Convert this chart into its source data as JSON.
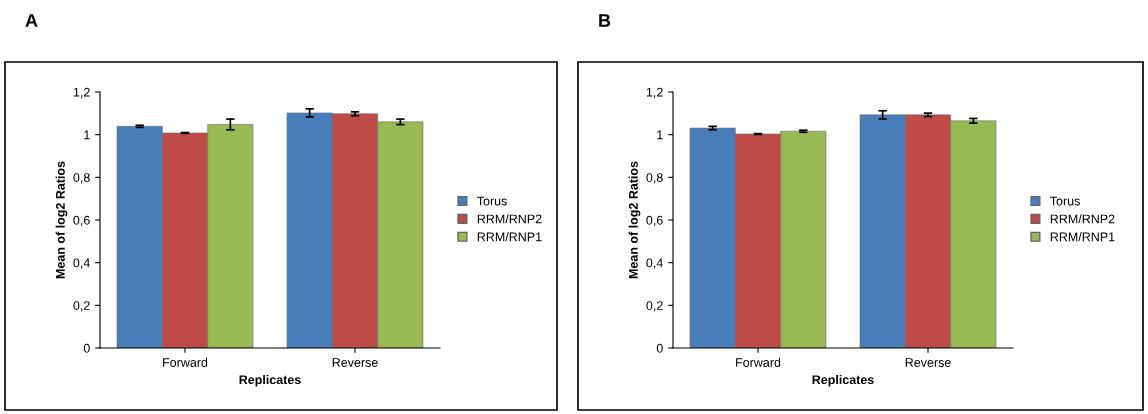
{
  "chart_data": [
    {
      "type": "bar",
      "title": "A",
      "xlabel": "Replicates",
      "ylabel": "Mean of log2 Ratios",
      "categories": [
        "Forward",
        "Reverse"
      ],
      "ylim": [
        0,
        1.2
      ],
      "yticks": [
        {
          "value": 0,
          "label": "0"
        },
        {
          "value": 0.2,
          "label": "0,2"
        },
        {
          "value": 0.4,
          "label": "0,4"
        },
        {
          "value": 0.6,
          "label": "0,6"
        },
        {
          "value": 0.8,
          "label": "0,8"
        },
        {
          "value": 1,
          "label": "1"
        },
        {
          "value": 1.2,
          "label": "1,2"
        }
      ],
      "legend": "right",
      "grid": false,
      "series": [
        {
          "name": "Torus",
          "color": "#4a7ebb",
          "values": [
            1.039,
            1.102
          ],
          "errors": [
            0.005,
            0.019
          ]
        },
        {
          "name": "RRM/RNP2",
          "color": "#be4b48",
          "values": [
            1.008,
            1.098
          ],
          "errors": [
            0.002,
            0.009
          ]
        },
        {
          "name": "RRM/RNP1",
          "color": "#98b954",
          "values": [
            1.048,
            1.06
          ],
          "errors": [
            0.025,
            0.013
          ]
        }
      ]
    },
    {
      "type": "bar",
      "title": "B",
      "xlabel": "Replicates",
      "ylabel": "Mean of log2 Ratios",
      "categories": [
        "Forward",
        "Reverse"
      ],
      "ylim": [
        0,
        1.2
      ],
      "yticks": [
        {
          "value": 0,
          "label": "0"
        },
        {
          "value": 0.2,
          "label": "0,2"
        },
        {
          "value": 0.4,
          "label": "0,4"
        },
        {
          "value": 0.6,
          "label": "0,6"
        },
        {
          "value": 0.8,
          "label": "0,8"
        },
        {
          "value": 1,
          "label": "1"
        },
        {
          "value": 1.2,
          "label": "1,2"
        }
      ],
      "legend": "right",
      "grid": false,
      "series": [
        {
          "name": "Torus",
          "color": "#4a7ebb",
          "values": [
            1.031,
            1.093
          ],
          "errors": [
            0.008,
            0.019
          ]
        },
        {
          "name": "RRM/RNP2",
          "color": "#be4b48",
          "values": [
            1.003,
            1.093
          ],
          "errors": [
            0.002,
            0.008
          ]
        },
        {
          "name": "RRM/RNP1",
          "color": "#98b954",
          "values": [
            1.016,
            1.065
          ],
          "errors": [
            0.005,
            0.011
          ]
        }
      ]
    }
  ]
}
